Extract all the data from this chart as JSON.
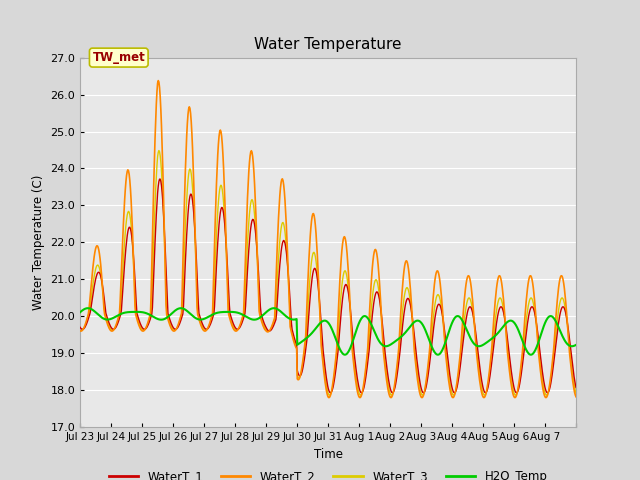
{
  "title": "Water Temperature",
  "ylabel": "Water Temperature (C)",
  "xlabel": "Time",
  "annotation": "TW_met",
  "ylim": [
    17.0,
    27.0
  ],
  "yticks": [
    17.0,
    18.0,
    19.0,
    20.0,
    21.0,
    22.0,
    23.0,
    24.0,
    25.0,
    26.0,
    27.0
  ],
  "bg_color": "#e8e8e8",
  "grid_color": "#ffffff",
  "colors": {
    "WaterT_1": "#cc0000",
    "WaterT_2": "#ff8800",
    "WaterT_3": "#ddcc00",
    "H2O_Temp": "#00cc00"
  },
  "x_tick_labels": [
    "Jul 23",
    "Jul 24",
    "Jul 25",
    "Jul 26",
    "Jul 27",
    "Jul 28",
    "Jul 29",
    "Jul 30",
    "Jul 31",
    "Aug 1",
    "Aug 2",
    "Aug 3",
    "Aug 4",
    "Aug 5",
    "Aug 6",
    "Aug 7"
  ],
  "n_days": 16
}
